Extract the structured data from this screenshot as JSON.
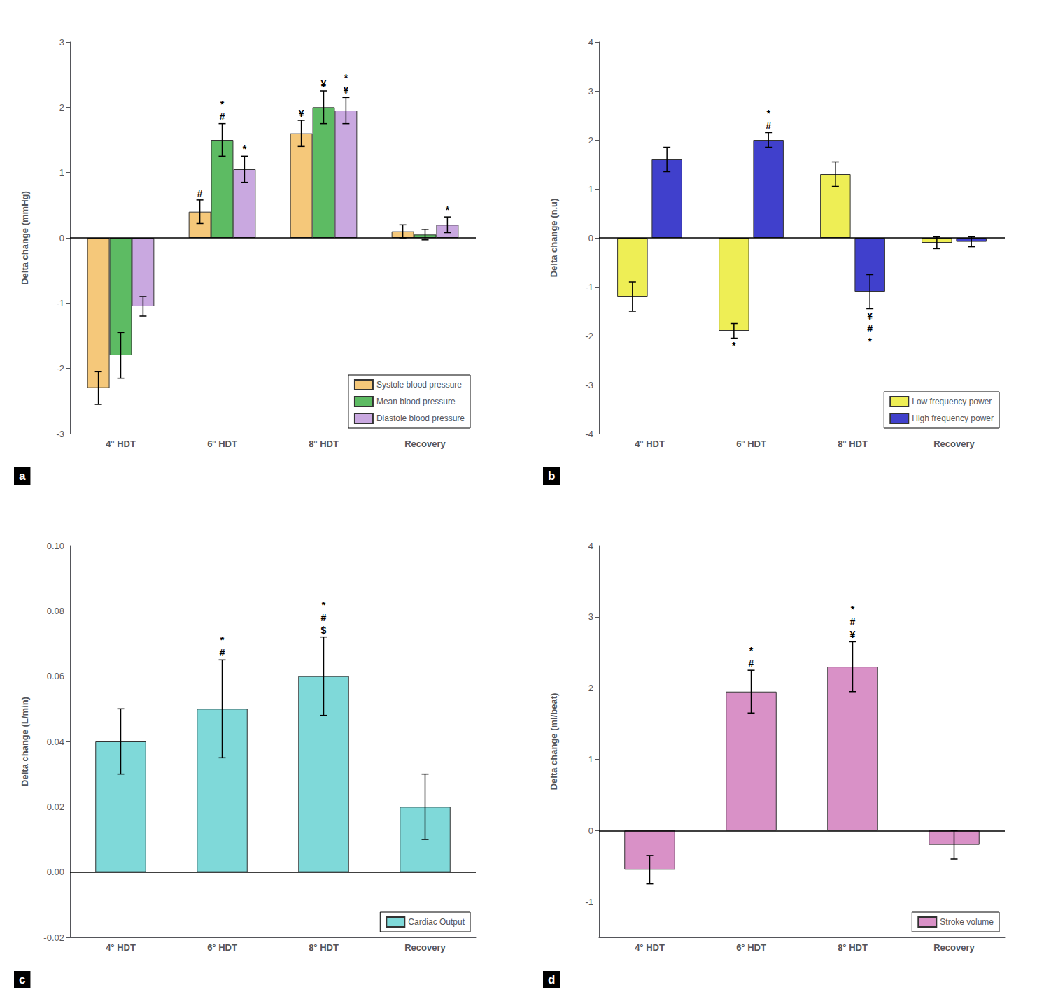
{
  "chart_data": [
    {
      "type": "bar",
      "title": "a",
      "ylabel": "Delta change (mmHg)",
      "categories": [
        "4° HDT",
        "6° HDT",
        "8° HDT",
        "Recovery"
      ],
      "series": [
        {
          "name": "Systole blood pressure",
          "color": "#F5C87A",
          "values": [
            -2.3,
            0.4,
            1.6,
            0.1
          ],
          "errors": [
            0.25,
            0.18,
            0.2,
            0.1
          ]
        },
        {
          "name": "Mean blood pressure",
          "color": "#5DBB63",
          "values": [
            -1.8,
            1.5,
            2.0,
            0.05
          ],
          "errors": [
            0.35,
            0.25,
            0.25,
            0.08
          ]
        },
        {
          "name": "Diastole blood pressure",
          "color": "#C9A8E0",
          "values": [
            -1.05,
            1.05,
            1.95,
            0.2
          ],
          "errors": [
            0.15,
            0.2,
            0.2,
            0.12
          ]
        }
      ],
      "annotations": [
        {
          "category": "6° HDT",
          "series": "Systole blood pressure",
          "text": "#"
        },
        {
          "category": "6° HDT",
          "series": "Mean blood pressure",
          "text": "#"
        },
        {
          "category": "6° HDT",
          "series": "Mean blood pressure",
          "text": "*"
        },
        {
          "category": "6° HDT",
          "series": "Diastole blood pressure",
          "text": "*"
        },
        {
          "category": "8° HDT",
          "series": "Systole blood pressure",
          "text": "¥"
        },
        {
          "category": "8° HDT",
          "series": "Mean blood pressure",
          "text": "¥"
        },
        {
          "category": "8° HDT",
          "series": "Diastole blood pressure",
          "text": "¥"
        },
        {
          "category": "8° HDT",
          "series": "Diastole blood pressure",
          "text": "*"
        },
        {
          "category": "Recovery",
          "series": "Diastole blood pressure",
          "text": "*"
        }
      ],
      "ylim": [
        -3,
        3
      ],
      "yticks": [
        -3,
        -2,
        -1,
        0,
        1,
        2,
        3
      ],
      "grid": false,
      "legend": "lower right"
    },
    {
      "type": "bar",
      "title": "b",
      "ylabel": "Delta change (n.u)",
      "categories": [
        "4° HDT",
        "6° HDT",
        "8° HDT",
        "Recovery"
      ],
      "series": [
        {
          "name": "Low frequency power",
          "color": "#EEEE55",
          "values": [
            -1.2,
            -1.9,
            1.3,
            -0.1
          ],
          "errors": [
            0.3,
            0.15,
            0.25,
            0.12
          ]
        },
        {
          "name": "High frequency power",
          "color": "#4040CC",
          "values": [
            1.6,
            2.0,
            -1.1,
            -0.08
          ],
          "errors": [
            0.25,
            0.15,
            0.35,
            0.1
          ]
        }
      ],
      "annotations": [
        {
          "category": "6° HDT",
          "series": "Low frequency power",
          "text": "*"
        },
        {
          "category": "6° HDT",
          "series": "High frequency power",
          "text": "#"
        },
        {
          "category": "6° HDT",
          "series": "High frequency power",
          "text": "*"
        },
        {
          "category": "8° HDT",
          "series": "High frequency power",
          "text": "¥"
        },
        {
          "category": "8° HDT",
          "series": "High frequency power",
          "text": "#"
        },
        {
          "category": "8° HDT",
          "series": "High frequency power",
          "text": "*"
        }
      ],
      "ylim": [
        -4,
        4
      ],
      "yticks": [
        -4,
        -3,
        -2,
        -1,
        0,
        1,
        2,
        3,
        4
      ],
      "grid": false,
      "legend": "lower right"
    },
    {
      "type": "bar",
      "title": "c",
      "ylabel": "Delta change (L/min)",
      "categories": [
        "4° HDT",
        "6° HDT",
        "8° HDT",
        "Recovery"
      ],
      "series": [
        {
          "name": "Cardiac Output",
          "color": "#7FD9D9",
          "values": [
            0.04,
            0.05,
            0.06,
            0.02
          ],
          "errors": [
            0.01,
            0.015,
            0.012,
            0.01
          ]
        }
      ],
      "annotations": [
        {
          "category": "6° HDT",
          "series": "Cardiac Output",
          "text": "#"
        },
        {
          "category": "6° HDT",
          "series": "Cardiac Output",
          "text": "*"
        },
        {
          "category": "8° HDT",
          "series": "Cardiac Output",
          "text": "$"
        },
        {
          "category": "8° HDT",
          "series": "Cardiac Output",
          "text": "#"
        },
        {
          "category": "8° HDT",
          "series": "Cardiac Output",
          "text": "*"
        }
      ],
      "ylim": [
        -0.02,
        0.1
      ],
      "yticks": [
        -0.02,
        {
          "value": 0,
          "label": "0.00"
        },
        0.02,
        0.04,
        0.06,
        0.08,
        {
          "value": 0.1,
          "label": "0.10"
        }
      ],
      "grid": false,
      "legend": "lower right"
    },
    {
      "type": "bar",
      "title": "d",
      "ylabel": "Delta change (ml/beat)",
      "categories": [
        "4° HDT",
        "6° HDT",
        "8° HDT",
        "Recovery"
      ],
      "series": [
        {
          "name": "Stroke volume",
          "color": "#D991C7",
          "values": [
            -0.55,
            1.95,
            2.3,
            -0.2
          ],
          "errors": [
            0.2,
            0.3,
            0.35,
            0.2
          ]
        }
      ],
      "annotations": [
        {
          "category": "6° HDT",
          "series": "Stroke volume",
          "text": "#"
        },
        {
          "category": "6° HDT",
          "series": "Stroke volume",
          "text": "*"
        },
        {
          "category": "8° HDT",
          "series": "Stroke volume",
          "text": "¥"
        },
        {
          "category": "8° HDT",
          "series": "Stroke volume",
          "text": "#"
        },
        {
          "category": "8° HDT",
          "series": "Stroke volume",
          "text": "*"
        }
      ],
      "ylim": [
        -1.5,
        4
      ],
      "yticks": [
        -1,
        0,
        1,
        2,
        3,
        4
      ],
      "grid": false,
      "legend": "lower right"
    }
  ]
}
